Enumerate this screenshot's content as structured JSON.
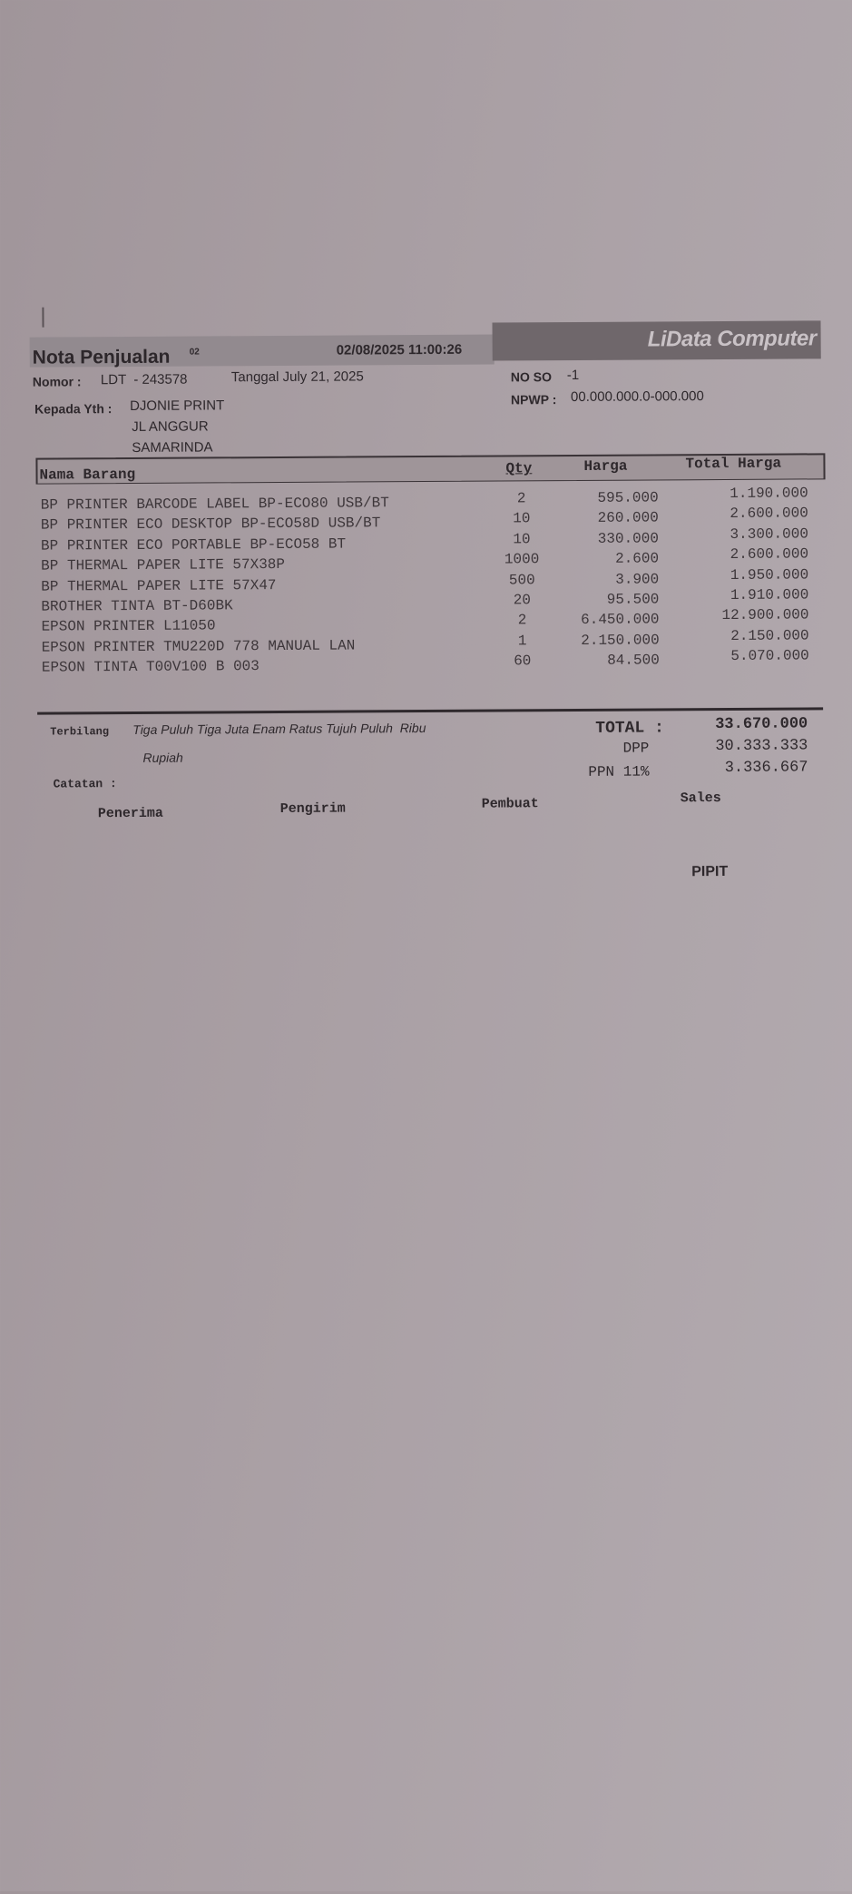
{
  "header": {
    "title": "Nota Penjualan",
    "copy_mark": "02",
    "printed_at": "02/08/2025 11:00:26",
    "company": "LiData Computer"
  },
  "info": {
    "nomor_label": "Nomor :",
    "nomor_value": "LDT  - 243578",
    "tanggal": "Tanggal July 21, 2025",
    "no_so_label": "NO SO",
    "no_so_value": "-1",
    "npwp_label": "NPWP :",
    "npwp_value": "00.000.000.0-000.000",
    "kepada_label": "Kepada Yth :",
    "customer_name": "DJONIE PRINT",
    "address_1": "JL ANGGUR",
    "address_2": "SAMARINDA"
  },
  "table": {
    "headers": {
      "item": "Nama Barang",
      "qty": "Qty",
      "price": "Harga",
      "total": "Total Harga"
    },
    "rows": [
      {
        "item": "BP PRINTER BARCODE LABEL BP-ECO80 USB/BT",
        "qty": "2",
        "price": "595.000",
        "total": "1.190.000"
      },
      {
        "item": "BP PRINTER ECO DESKTOP BP-ECO58D USB/BT",
        "qty": "10",
        "price": "260.000",
        "total": "2.600.000"
      },
      {
        "item": "BP PRINTER ECO PORTABLE BP-ECO58 BT",
        "qty": "10",
        "price": "330.000",
        "total": "3.300.000"
      },
      {
        "item": "BP THERMAL PAPER LITE 57X38P",
        "qty": "1000",
        "price": "2.600",
        "total": "2.600.000"
      },
      {
        "item": "BP THERMAL PAPER LITE 57X47",
        "qty": "500",
        "price": "3.900",
        "total": "1.950.000"
      },
      {
        "item": "BROTHER TINTA BT-D60BK",
        "qty": "20",
        "price": "95.500",
        "total": "1.910.000"
      },
      {
        "item": "EPSON PRINTER L11050",
        "qty": "2",
        "price": "6.450.000",
        "total": "12.900.000"
      },
      {
        "item": "EPSON PRINTER TMU220D 778 MANUAL LAN",
        "qty": "1",
        "price": "2.150.000",
        "total": "2.150.000"
      },
      {
        "item": "EPSON TINTA T00V100 B 003",
        "qty": "60",
        "price": "84.500",
        "total": "5.070.000"
      }
    ]
  },
  "summary": {
    "terbilang_label": "Terbilang",
    "terbilang_line1": "Tiga Puluh Tiga Juta Enam Ratus Tujuh Puluh  Ribu",
    "terbilang_line2": "Rupiah",
    "catatan_label": "Catatan :",
    "total_label": "TOTAL :",
    "total_value": "33.670.000",
    "dpp_label": "DPP",
    "dpp_value": "30.333.333",
    "ppn_label": "PPN 11%",
    "ppn_value": "3.336.667"
  },
  "signatures": {
    "penerima": "Penerima",
    "pengirim": "Pengirim",
    "pembuat": "Pembuat",
    "sales": "Sales",
    "sales_name": "PIPIT"
  }
}
